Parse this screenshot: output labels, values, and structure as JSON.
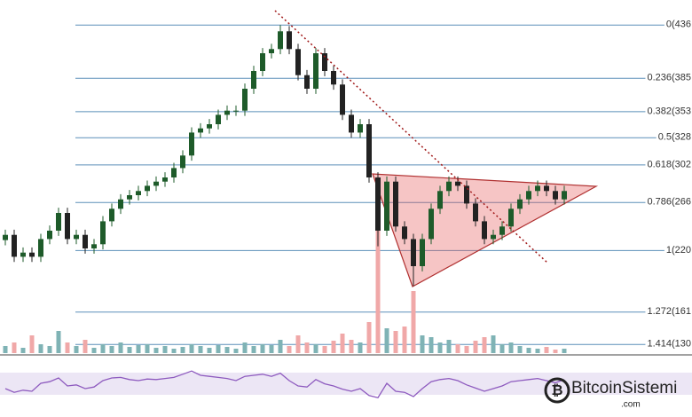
{
  "chart_data": {
    "type": "candlestick",
    "ylim": [
      1200,
      4600
    ],
    "yticks": [
      {
        "value": 4360,
        "label": "0(436"
      },
      {
        "value": 3850,
        "label": "0.236(385"
      },
      {
        "value": 3530,
        "label": "0.382(353"
      },
      {
        "value": 3280,
        "label": "0.5(328"
      },
      {
        "value": 3020,
        "label": "0.618(302"
      },
      {
        "value": 2660,
        "label": "0.786(266"
      },
      {
        "value": 2200,
        "label": "1(220"
      },
      {
        "value": 1610,
        "label": "1.272(161"
      },
      {
        "value": 1300,
        "label": "1.414(130"
      }
    ],
    "grid_color": "#5b8fb9",
    "up_color": "#1e5b2a",
    "down_color": "#222222",
    "open": [
      2300,
      2350,
      2140,
      2180,
      2140,
      2310,
      2390,
      2560,
      2310,
      2350,
      2220,
      2260,
      2480,
      2600,
      2690,
      2730,
      2770,
      2820,
      2860,
      2900,
      2990,
      3110,
      3330,
      3370,
      3410,
      3500,
      3540,
      3540,
      3750,
      3920,
      4090,
      4130,
      4300,
      4130,
      3880,
      3750,
      4090,
      3920,
      3790,
      3500,
      3330,
      3410,
      2900,
      2390,
      2860,
      2430,
      2310,
      2050,
      2310,
      2600,
      2770,
      2860,
      2820,
      2650,
      2480,
      2310,
      2350,
      2430,
      2600,
      2690,
      2770,
      2820,
      2770,
      2690
    ],
    "high": [
      2400,
      2400,
      2230,
      2230,
      2360,
      2440,
      2610,
      2610,
      2400,
      2400,
      2310,
      2530,
      2650,
      2740,
      2780,
      2820,
      2870,
      2910,
      2950,
      3040,
      3160,
      3380,
      3420,
      3460,
      3550,
      3590,
      3590,
      3800,
      3970,
      4140,
      4180,
      4360,
      4350,
      4180,
      3930,
      4140,
      4140,
      3970,
      3840,
      3550,
      3460,
      3460,
      2950,
      2910,
      2910,
      2480,
      2360,
      2360,
      2650,
      2820,
      2910,
      2910,
      2870,
      2700,
      2530,
      2400,
      2480,
      2650,
      2740,
      2820,
      2870,
      2870,
      2820,
      2820
    ],
    "low": [
      2250,
      2090,
      2090,
      2090,
      2090,
      2260,
      2340,
      2260,
      2260,
      2170,
      2170,
      2210,
      2430,
      2550,
      2640,
      2680,
      2720,
      2770,
      2810,
      2850,
      2940,
      3060,
      3280,
      3320,
      3360,
      3450,
      3490,
      3490,
      3700,
      3870,
      4040,
      4080,
      4080,
      3830,
      3700,
      3700,
      3870,
      3740,
      3450,
      3280,
      3280,
      2850,
      2240,
      2340,
      2380,
      2260,
      1860,
      2000,
      2260,
      2550,
      2720,
      2770,
      2600,
      2430,
      2260,
      2260,
      2300,
      2380,
      2550,
      2640,
      2720,
      2720,
      2640,
      2640
    ],
    "close": [
      2350,
      2140,
      2180,
      2140,
      2310,
      2390,
      2560,
      2310,
      2350,
      2220,
      2260,
      2480,
      2600,
      2690,
      2730,
      2770,
      2820,
      2860,
      2900,
      2990,
      3110,
      3330,
      3370,
      3410,
      3500,
      3540,
      3540,
      3750,
      3920,
      4090,
      4130,
      4300,
      4130,
      3880,
      3750,
      4090,
      3920,
      3790,
      3500,
      3330,
      3410,
      2900,
      2390,
      2860,
      2430,
      2310,
      2050,
      2310,
      2600,
      2770,
      2860,
      2820,
      2650,
      2480,
      2310,
      2350,
      2430,
      2600,
      2690,
      2770,
      2820,
      2770,
      2690,
      2770
    ],
    "volume": [
      8,
      12,
      6,
      20,
      10,
      8,
      25,
      12,
      8,
      15,
      6,
      10,
      8,
      12,
      7,
      9,
      10,
      6,
      8,
      5,
      7,
      10,
      8,
      6,
      9,
      7,
      5,
      12,
      8,
      10,
      9,
      15,
      8,
      20,
      12,
      10,
      8,
      14,
      22,
      15,
      12,
      35,
      138,
      28,
      25,
      30,
      70,
      20,
      18,
      12,
      15,
      10,
      8,
      14,
      18,
      20,
      10,
      12,
      8,
      6,
      5,
      7,
      4,
      5
    ],
    "volume_ylim": [
      0,
      150
    ],
    "volume_up_color": "#7fb3b5",
    "volume_down_color": "#f0a8a8",
    "rsi": [
      45,
      38,
      42,
      40,
      55,
      58,
      65,
      50,
      52,
      45,
      48,
      60,
      65,
      66,
      62,
      60,
      63,
      62,
      64,
      66,
      72,
      78,
      70,
      68,
      66,
      64,
      60,
      68,
      70,
      72,
      68,
      74,
      60,
      50,
      48,
      62,
      54,
      50,
      44,
      40,
      45,
      32,
      28,
      55,
      40,
      38,
      30,
      45,
      58,
      62,
      64,
      60,
      52,
      46,
      40,
      45,
      50,
      58,
      60,
      62,
      64,
      60,
      56,
      62
    ],
    "rsi_ylim": [
      0,
      100
    ],
    "rsi_color": "#8e5bbf"
  },
  "watermark": {
    "name": "BitcoinSistemi",
    "domain": ".com"
  }
}
